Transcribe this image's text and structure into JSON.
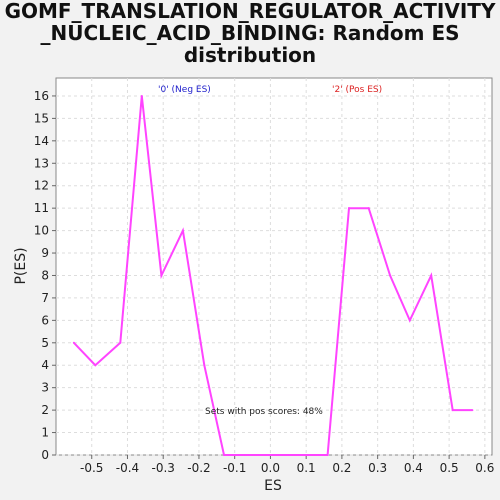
{
  "chart_data": {
    "type": "line",
    "title_lines": [
      "GOMF_TRANSLATION_REGULATOR_ACTIVITY",
      "_NUCLEIC_ACID_BINDING: Random ES",
      "distribution"
    ],
    "xlabel": "ES",
    "ylabel": "P(ES)",
    "xlim": [
      -0.6,
      0.62
    ],
    "ylim": [
      0,
      16.8
    ],
    "xticks": [
      -0.5,
      -0.4,
      -0.3,
      -0.2,
      -0.1,
      0.0,
      0.1,
      0.2,
      0.3,
      0.4,
      0.5,
      0.6
    ],
    "xtick_labels": [
      "-0.5",
      "-0.4",
      "-0.3",
      "-0.2",
      "-0.1",
      "0.0",
      "0.1",
      "0.2",
      "0.3",
      "0.4",
      "0.5",
      "0.6"
    ],
    "yticks": [
      0,
      1,
      2,
      3,
      4,
      5,
      6,
      7,
      8,
      9,
      10,
      11,
      12,
      13,
      14,
      15,
      16
    ],
    "ytick_labels": [
      "0",
      "1",
      "2",
      "3",
      "4",
      "5",
      "6",
      "7",
      "8",
      "9",
      "10",
      "11",
      "12",
      "13",
      "14",
      "15",
      "16"
    ],
    "grid": true,
    "series": [
      {
        "color": "#ff44ff",
        "x": [
          -0.55,
          -0.49,
          -0.42,
          -0.36,
          -0.305,
          -0.245,
          -0.185,
          -0.13,
          -0.07,
          -0.015,
          0.045,
          0.1,
          0.16,
          0.22,
          0.275,
          0.335,
          0.39,
          0.45,
          0.51,
          0.565
        ],
        "y": [
          5,
          4,
          5,
          16,
          8,
          10,
          4,
          0,
          0,
          0,
          0,
          0,
          0,
          11,
          11,
          8,
          6,
          8,
          2,
          2
        ]
      }
    ],
    "annotations": [
      {
        "text": "'0' (Neg ES)",
        "color": "#2222cc"
      },
      {
        "text": "'2' (Pos ES)",
        "color": "#dd2222"
      },
      {
        "text": "Sets with pos scores: 48%",
        "color": "#222222"
      }
    ]
  }
}
